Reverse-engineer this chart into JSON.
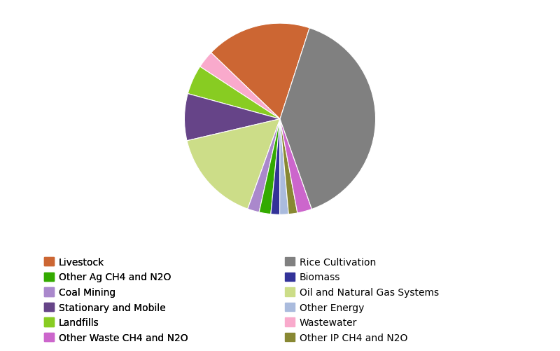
{
  "labels_ordered": [
    "Livestock",
    "Wastewater",
    "Landfills",
    "Stationary and Mobile",
    "Oil and Natural Gas Systems",
    "Coal Mining",
    "Other Ag CH4 and N2O",
    "Biomass",
    "Other Energy",
    "Other IP CH4 and N2O",
    "Other Waste CH4 and N2O",
    "Rice Cultivation"
  ],
  "values_ordered": [
    18,
    3,
    5,
    8,
    16,
    2,
    2,
    1.5,
    1.5,
    1.5,
    2.5,
    40
  ],
  "colors_ordered": [
    "#cc6633",
    "#f9aacc",
    "#88cc22",
    "#664488",
    "#ccdd88",
    "#aa88cc",
    "#33aa00",
    "#333399",
    "#aabbdd",
    "#888833",
    "#cc66cc",
    "#808080"
  ],
  "legend_left": [
    [
      "Livestock",
      "#cc6633"
    ],
    [
      "Other Ag CH4 and N2O",
      "#33aa00"
    ],
    [
      "Coal Mining",
      "#aa88cc"
    ],
    [
      "Stationary and Mobile",
      "#664488"
    ],
    [
      "Landfills",
      "#88cc22"
    ],
    [
      "Other Waste CH4 and N2O",
      "#cc66cc"
    ]
  ],
  "legend_right": [
    [
      "Rice Cultivation",
      "#808080"
    ],
    [
      "Biomass",
      "#333399"
    ],
    [
      "Oil and Natural Gas Systems",
      "#ccdd88"
    ],
    [
      "Other Energy",
      "#aabbdd"
    ],
    [
      "Wastewater",
      "#f9aacc"
    ],
    [
      "Other IP CH4 and N2O",
      "#888833"
    ]
  ],
  "background_color": "#ffffff",
  "legend_fontsize": 10,
  "startangle": 72
}
